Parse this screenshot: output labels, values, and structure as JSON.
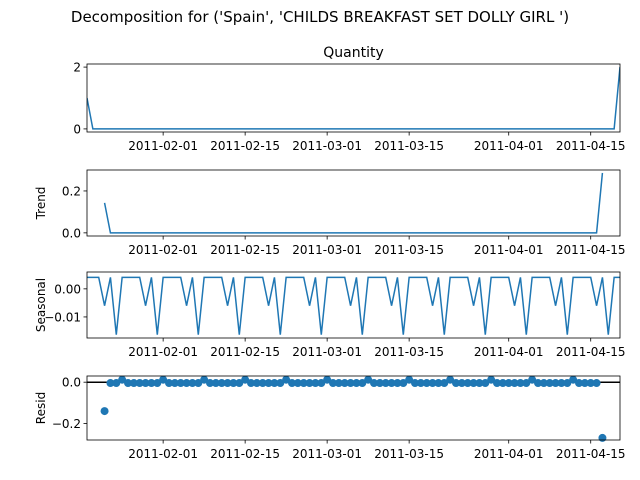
{
  "suptitle": "Decomposition for ('Spain', 'CHILDS BREAKFAST SET DOLLY GIRL ')",
  "xaxis": {
    "start": "2011-01-19",
    "end": "2011-04-20",
    "ticks": [
      "2011-02-01",
      "2011-02-15",
      "2011-03-01",
      "2011-03-15",
      "2011-04-01",
      "2011-04-15"
    ]
  },
  "chart_data": [
    {
      "type": "line",
      "title": "Quantity",
      "ylabel": "",
      "ylim": [
        -0.1,
        2.1
      ],
      "yticks": [
        0,
        2
      ],
      "ytick_labels": [
        "0",
        "2"
      ],
      "series": [
        {
          "color": "#1f77b4",
          "points": [
            [
              "2011-01-19",
              1
            ],
            [
              "2011-01-20",
              0
            ],
            [
              "2011-04-19",
              0
            ],
            [
              "2011-04-20",
              2
            ]
          ]
        }
      ]
    },
    {
      "type": "line",
      "title": "",
      "ylabel": "Trend",
      "ylim": [
        -0.015,
        0.3
      ],
      "yticks": [
        0.0,
        0.2
      ],
      "ytick_labels": [
        "0.0",
        "0.2"
      ],
      "series": [
        {
          "color": "#1f77b4",
          "points": [
            [
              "2011-01-22",
              0.143
            ],
            [
              "2011-01-23",
              0
            ],
            [
              "2011-04-16",
              0
            ],
            [
              "2011-04-17",
              0.286
            ]
          ]
        }
      ]
    },
    {
      "type": "line",
      "title": "",
      "ylabel": "Seasonal",
      "ylim": [
        -0.0175,
        0.006
      ],
      "yticks": [
        0.0,
        -0.01
      ],
      "ytick_labels": [
        "0.00",
        "−0.01"
      ],
      "period_start": "2011-01-19",
      "period_pattern": [
        0.0041,
        0.0041,
        0.0041,
        -0.006,
        0.0041,
        -0.0163,
        0.0041
      ],
      "series": [
        {
          "color": "#1f77b4"
        }
      ]
    },
    {
      "type": "scatter",
      "title": "",
      "ylabel": "Resid",
      "ylim": [
        -0.28,
        0.03
      ],
      "yticks": [
        0.0,
        -0.2
      ],
      "ytick_labels": [
        "0.0",
        "−0.2"
      ],
      "baseline": 0,
      "outliers": [
        [
          "2011-01-22",
          -0.14
        ],
        [
          "2011-04-17",
          -0.27
        ]
      ],
      "regular_range": [
        "2011-01-23",
        "2011-04-16"
      ],
      "regular_pattern": [
        -0.004,
        -0.004,
        0.012,
        -0.004,
        -0.004,
        -0.004,
        -0.004
      ],
      "series": [
        {
          "color": "#1f77b4"
        }
      ]
    }
  ]
}
